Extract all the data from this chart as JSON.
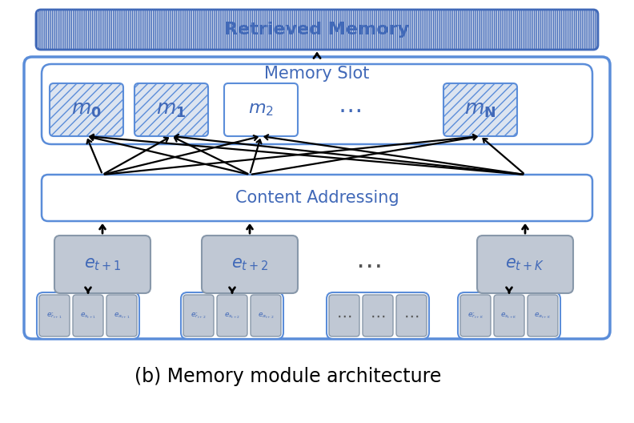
{
  "title": "(b) Memory module architecture",
  "title_fontsize": 17,
  "bg_color": "#ffffff",
  "blue_border": "#4169b8",
  "blue_border2": "#5b8dd9",
  "gray_fill": "#b0b8c8",
  "box_fill": "#b8bec8",
  "sub_box_fill": "#b8bec8",
  "hatch_fill": "#dce4f0",
  "text_blue": "#4169b8",
  "text_blue2": "#3a6abf",
  "retrieved_memory_label": "Retrieved Memory",
  "memory_slot_label": "Memory Slot",
  "content_addressing_label": "Content Addressing"
}
